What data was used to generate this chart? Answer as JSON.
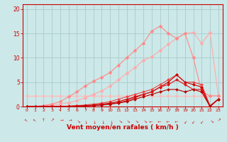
{
  "xlabel": "Vent moyen/en rafales ( km/h )",
  "bg_color": "#cce8e8",
  "grid_color": "#aacccc",
  "xlim": [
    -0.5,
    23.5
  ],
  "ylim": [
    0,
    21
  ],
  "yticks": [
    0,
    5,
    10,
    15,
    20
  ],
  "xticks": [
    0,
    1,
    2,
    3,
    4,
    5,
    6,
    7,
    8,
    9,
    10,
    11,
    12,
    13,
    14,
    15,
    16,
    17,
    18,
    19,
    20,
    21,
    22,
    23
  ],
  "series": [
    {
      "x": [
        0,
        1,
        2,
        3,
        4,
        5,
        6,
        7,
        8,
        9,
        10,
        11,
        12,
        13,
        14,
        15,
        16,
        17,
        18,
        19,
        20,
        21,
        22,
        23
      ],
      "y": [
        2.2,
        2.2,
        2.2,
        2.2,
        2.2,
        2.2,
        2.2,
        2.2,
        2.2,
        2.2,
        2.2,
        2.2,
        2.2,
        2.2,
        2.2,
        2.2,
        2.2,
        2.2,
        2.2,
        2.2,
        2.2,
        2.2,
        2.2,
        2.2
      ],
      "color": "#ffbbbb",
      "marker": "D",
      "markersize": 2.5,
      "linewidth": 0.8,
      "zorder": 2
    },
    {
      "x": [
        0,
        1,
        2,
        3,
        4,
        5,
        6,
        7,
        8,
        9,
        10,
        11,
        12,
        13,
        14,
        15,
        16,
        17,
        18,
        19,
        20,
        21,
        22,
        23
      ],
      "y": [
        0,
        0,
        0.1,
        0.3,
        0.5,
        0.8,
        1.2,
        1.8,
        2.5,
        3.2,
        4.2,
        5.5,
        6.8,
        8.0,
        9.5,
        10.2,
        11.5,
        12.8,
        14.0,
        15.0,
        15.2,
        13.0,
        15.2,
        2.2
      ],
      "color": "#ffaaaa",
      "marker": "D",
      "markersize": 2.5,
      "linewidth": 0.8,
      "zorder": 2
    },
    {
      "x": [
        0,
        1,
        2,
        3,
        4,
        5,
        6,
        7,
        8,
        9,
        10,
        11,
        12,
        13,
        14,
        15,
        16,
        17,
        18,
        19,
        20,
        21,
        22,
        23
      ],
      "y": [
        0,
        0,
        0.2,
        0.5,
        1.0,
        2.0,
        3.0,
        4.2,
        5.2,
        6.0,
        7.0,
        8.5,
        10.0,
        11.5,
        13.0,
        15.5,
        16.5,
        15.0,
        14.0,
        15.0,
        10.0,
        3.0,
        2.2,
        2.2
      ],
      "color": "#ff8888",
      "marker": "D",
      "markersize": 2.5,
      "linewidth": 0.8,
      "zorder": 3
    },
    {
      "x": [
        0,
        1,
        2,
        3,
        4,
        5,
        6,
        7,
        8,
        9,
        10,
        11,
        12,
        13,
        14,
        15,
        16,
        17,
        18,
        19,
        20,
        21,
        22,
        23
      ],
      "y": [
        0,
        0,
        0,
        0,
        0,
        0.1,
        0.2,
        0.3,
        0.5,
        0.7,
        1.0,
        1.5,
        2.0,
        2.5,
        3.0,
        3.5,
        4.5,
        5.5,
        6.5,
        5.0,
        5.0,
        4.5,
        0.2,
        1.5
      ],
      "color": "#ee4444",
      "marker": "D",
      "markersize": 2,
      "linewidth": 0.8,
      "zorder": 4
    },
    {
      "x": [
        0,
        1,
        2,
        3,
        4,
        5,
        6,
        7,
        8,
        9,
        10,
        11,
        12,
        13,
        14,
        15,
        16,
        17,
        18,
        19,
        20,
        21,
        22,
        23
      ],
      "y": [
        0,
        0,
        0,
        0,
        0,
        0.05,
        0.1,
        0.2,
        0.3,
        0.5,
        0.7,
        1.0,
        1.5,
        2.0,
        2.5,
        3.0,
        4.0,
        5.0,
        6.5,
        5.0,
        4.5,
        4.0,
        0.0,
        1.5
      ],
      "color": "#cc0000",
      "marker": "D",
      "markersize": 2,
      "linewidth": 0.8,
      "zorder": 4
    },
    {
      "x": [
        0,
        1,
        2,
        3,
        4,
        5,
        6,
        7,
        8,
        9,
        10,
        11,
        12,
        13,
        14,
        15,
        16,
        17,
        18,
        19,
        20,
        21,
        22,
        23
      ],
      "y": [
        0,
        0,
        0,
        0,
        0,
        0.05,
        0.1,
        0.15,
        0.2,
        0.3,
        0.5,
        0.8,
        1.2,
        1.8,
        2.5,
        3.0,
        4.0,
        4.5,
        5.5,
        4.5,
        3.5,
        3.5,
        0.0,
        1.5
      ],
      "color": "#dd1111",
      "marker": "D",
      "markersize": 2,
      "linewidth": 0.8,
      "zorder": 4
    },
    {
      "x": [
        0,
        1,
        2,
        3,
        4,
        5,
        6,
        7,
        8,
        9,
        10,
        11,
        12,
        13,
        14,
        15,
        16,
        17,
        18,
        19,
        20,
        21,
        22,
        23
      ],
      "y": [
        0,
        0,
        0,
        0,
        0,
        0,
        0,
        0.1,
        0.2,
        0.3,
        0.5,
        0.7,
        1.0,
        1.5,
        2.0,
        2.5,
        3.0,
        3.5,
        3.5,
        3.0,
        3.5,
        3.0,
        0.0,
        1.5
      ],
      "color": "#bb0000",
      "marker": "D",
      "markersize": 2,
      "linewidth": 0.8,
      "zorder": 4
    }
  ],
  "axis_color": "#cc0000",
  "tick_color": "#cc0000",
  "label_color": "#cc0000",
  "xlabel_fontsize": 6.5,
  "xlabel_bold": true
}
